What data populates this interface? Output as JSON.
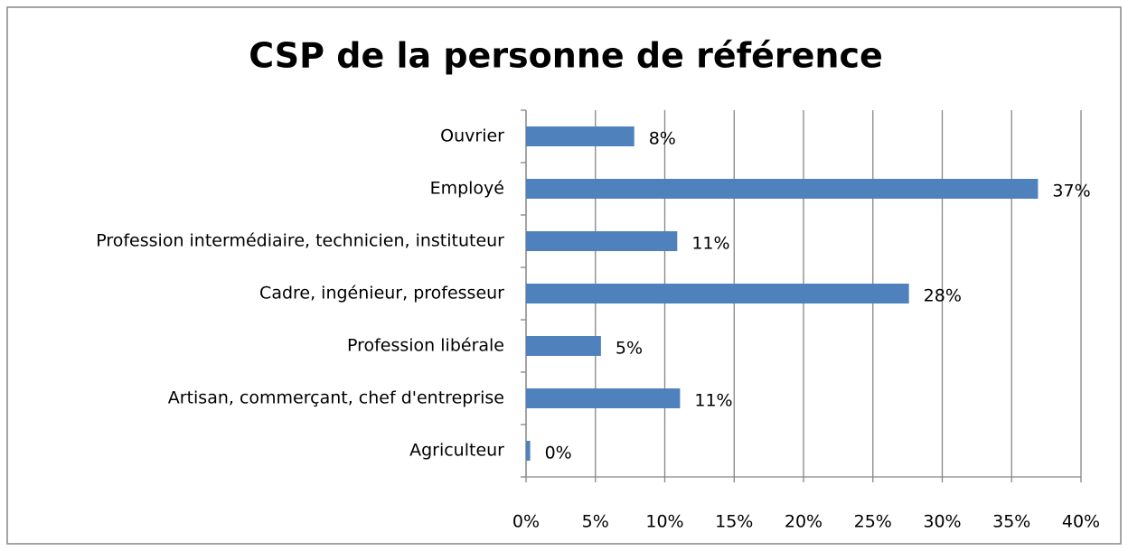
{
  "chart_data": {
    "type": "hbar",
    "title": "CSP de la personne de référence",
    "categories": [
      "Ouvrier",
      "Employé",
      "Profession intermédiaire, technicien, instituteur",
      "Cadre, ingénieur, professeur",
      "Profession libérale",
      "Artisan, commerçant, chef d'entreprise",
      "Agriculteur"
    ],
    "values": [
      7.8,
      36.9,
      10.9,
      27.6,
      5.4,
      11.1,
      0.3
    ],
    "value_labels": [
      "8%",
      "37%",
      "11%",
      "28%",
      "5%",
      "11%",
      "0%"
    ],
    "color": "#4f81bd",
    "xlim": [
      0,
      40
    ],
    "xticks": [
      {
        "value": 0,
        "label": "0%"
      },
      {
        "value": 5,
        "label": "5%"
      },
      {
        "value": 10,
        "label": "10%"
      },
      {
        "value": 15,
        "label": "15%"
      },
      {
        "value": 20,
        "label": "20%"
      },
      {
        "value": 25,
        "label": "25%"
      },
      {
        "value": 30,
        "label": "30%"
      },
      {
        "value": 35,
        "label": "35%"
      },
      {
        "value": 40,
        "label": "40%"
      }
    ],
    "grid": true
  }
}
